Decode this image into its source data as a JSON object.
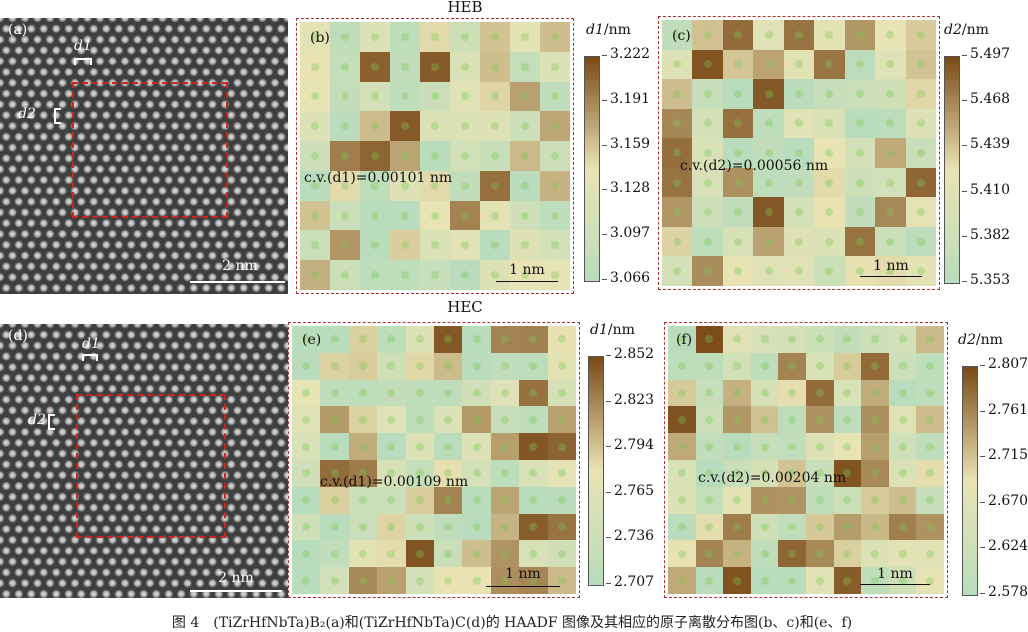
{
  "rows": [
    {
      "title": "HEB",
      "stem": {
        "label": "(a)",
        "d1_label": "d1",
        "d2_label": "d2",
        "scalebar": "2 nm"
      },
      "maps": [
        {
          "label": "(b)",
          "cv": "c.v.(d1)=0.00101 nm",
          "scalebar": "1 nm",
          "colorbar": {
            "symbol": "d1",
            "unit": "/nm",
            "ticks": [
              "3.222",
              "3.191",
              "3.159",
              "3.128",
              "3.097",
              "3.066"
            ]
          }
        },
        {
          "label": "(c)",
          "cv": "c.v.(d2)=0.00056 nm",
          "scalebar": "1 nm",
          "colorbar": {
            "symbol": "d2",
            "unit": "/nm",
            "ticks": [
              "5.497",
              "5.468",
              "5.439",
              "5.410",
              "5.382",
              "5.353"
            ]
          }
        }
      ]
    },
    {
      "title": "HEC",
      "stem": {
        "label": "(d)",
        "d1_label": "d1",
        "d2_label": "d2",
        "scalebar": "2 nm"
      },
      "maps": [
        {
          "label": "(e)",
          "cv": "c.v.(d1)=0.00109 nm",
          "scalebar": "1 nm",
          "colorbar": {
            "symbol": "d1",
            "unit": "/nm",
            "ticks": [
              "2.852",
              "2.823",
              "2.794",
              "2.765",
              "2.736",
              "2.707"
            ]
          }
        },
        {
          "label": "(f)",
          "cv": "c.v.(d2)=0.00204 nm",
          "scalebar": "1 nm",
          "colorbar": {
            "symbol": "d2",
            "unit": "/nm",
            "ticks": [
              "2.807",
              "2.761",
              "2.715",
              "2.670",
              "2.624",
              "2.578"
            ]
          }
        }
      ]
    }
  ],
  "caption": "图 4　(TiZrHfNbTa)B₂(a)和(TiZrHfNbTa)C(d)的 HAADF 图像及其相应的原子离散分布图(b、c)和(e、f)",
  "colors": {
    "low": "#b9dcbc",
    "mid": "#e9e3b4",
    "high": "#7a4a18",
    "roi": "#d62020",
    "frame": "#b03030"
  }
}
